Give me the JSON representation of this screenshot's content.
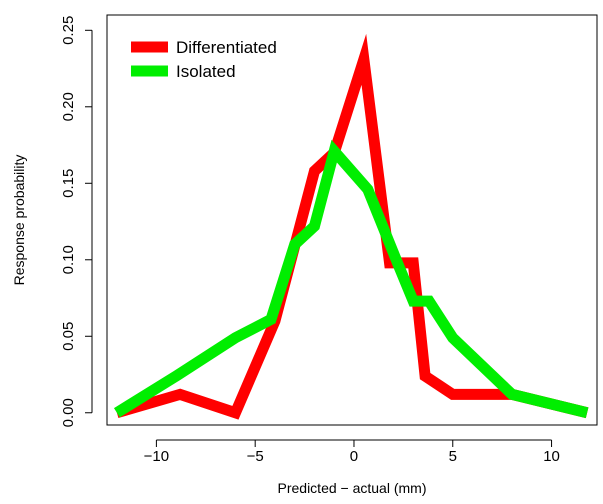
{
  "chart_data": {
    "type": "line",
    "title": "",
    "xlabel": "Predicted − actual (mm)",
    "ylabel": "Response probability",
    "xlim": [
      -12.5,
      12.3
    ],
    "ylim": [
      -0.008,
      0.26
    ],
    "xticks": [
      -10,
      -5,
      0,
      5,
      10
    ],
    "xtick_labels": [
      "−10",
      "−5",
      "0",
      "5",
      "10"
    ],
    "yticks": [
      0.0,
      0.05,
      0.1,
      0.15,
      0.2,
      0.25
    ],
    "ytick_labels": [
      "0.00",
      "0.05",
      "0.10",
      "0.15",
      "0.20",
      "0.25"
    ],
    "grid": false,
    "legend_position": "top-left",
    "series": [
      {
        "name": "Differentiated",
        "color": "#ff0000",
        "x": [
          -12.0,
          -8.8,
          -6.0,
          -4.0,
          -2.0,
          -1.0,
          0.5,
          1.8,
          3.0,
          3.6,
          5.0,
          8.0,
          11.8
        ],
        "y": [
          0.0,
          0.012,
          0.0,
          0.06,
          0.158,
          0.17,
          0.231,
          0.098,
          0.098,
          0.024,
          0.012,
          0.012,
          0.0
        ]
      },
      {
        "name": "Isolated",
        "color": "#00ee00",
        "x": [
          -12.0,
          -9.0,
          -6.0,
          -4.2,
          -3.0,
          -2.0,
          -1.0,
          0.7,
          2.2,
          3.0,
          3.8,
          5.0,
          8.0,
          11.8
        ],
        "y": [
          0.0,
          0.024,
          0.049,
          0.061,
          0.11,
          0.122,
          0.171,
          0.146,
          0.098,
          0.073,
          0.073,
          0.049,
          0.012,
          0.0
        ]
      }
    ]
  }
}
